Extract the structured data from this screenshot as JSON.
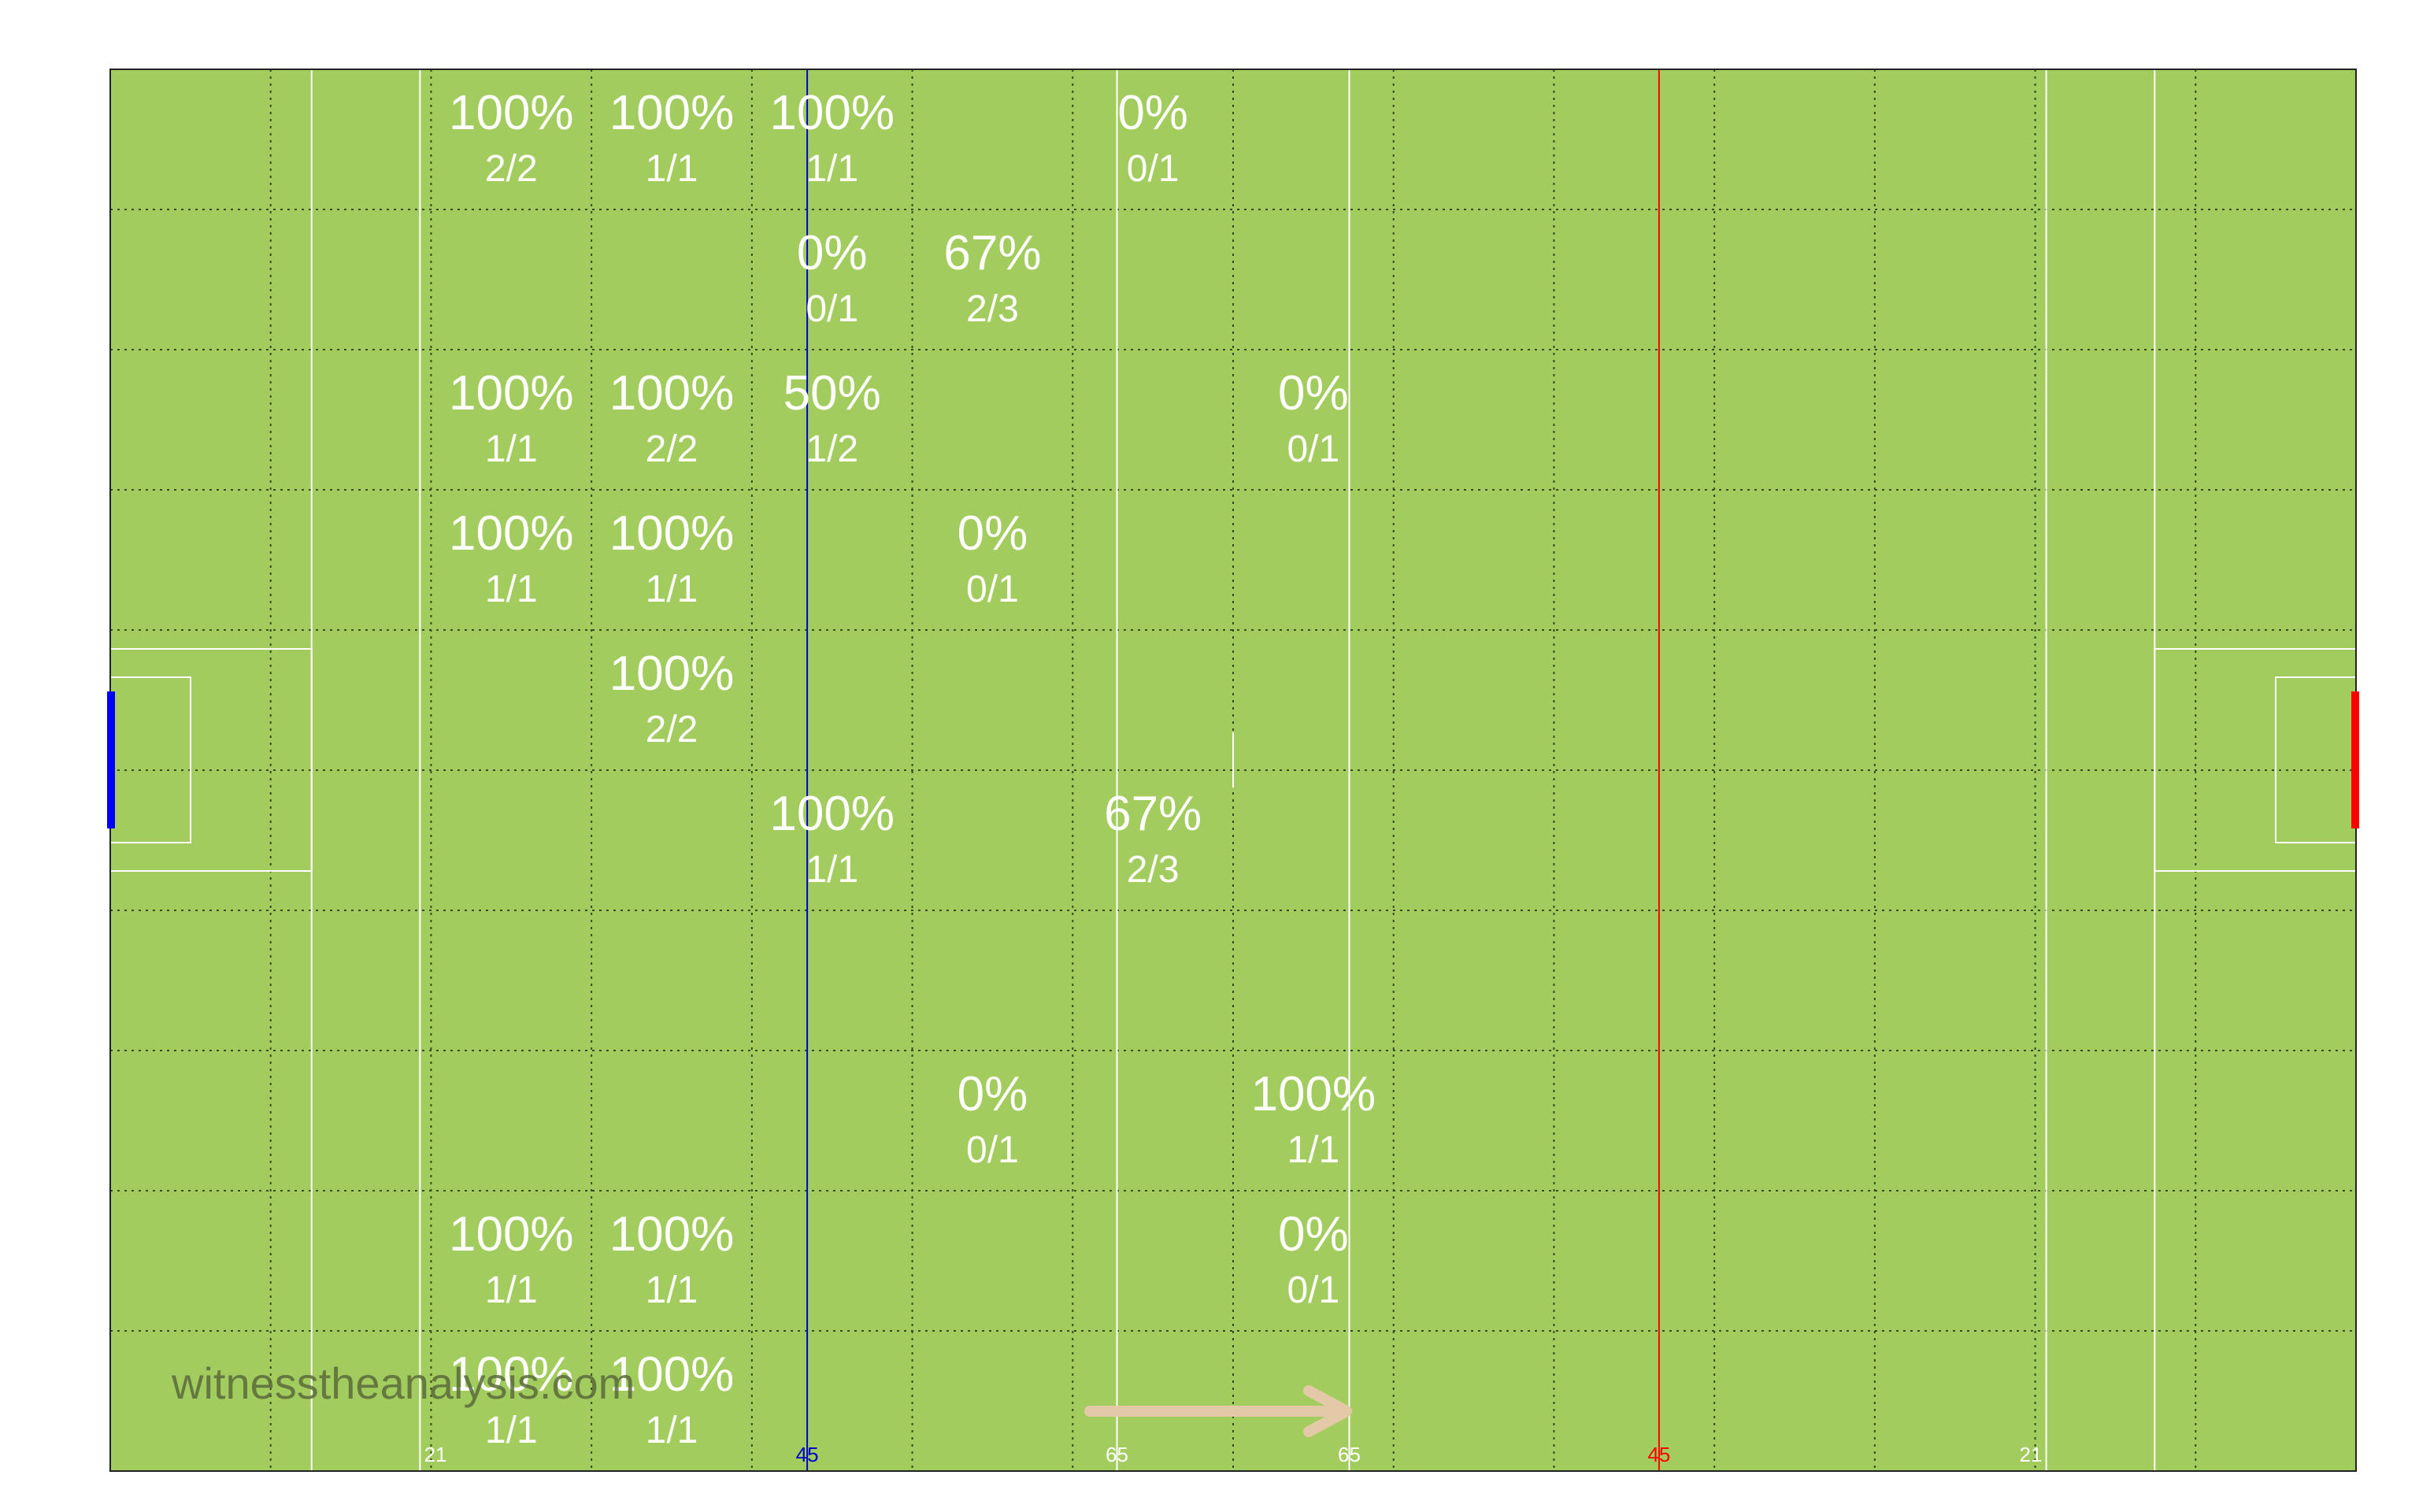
{
  "chart_data": {
    "type": "heatmap",
    "title": "",
    "grid": true,
    "columns": 14,
    "rows": 10,
    "cells": [
      {
        "col": 2,
        "row": 0,
        "pct": "100%",
        "frac": "2/2"
      },
      {
        "col": 3,
        "row": 0,
        "pct": "100%",
        "frac": "1/1"
      },
      {
        "col": 4,
        "row": 0,
        "pct": "100%",
        "frac": "1/1"
      },
      {
        "col": 6,
        "row": 0,
        "pct": "0%",
        "frac": "0/1"
      },
      {
        "col": 4,
        "row": 1,
        "pct": "0%",
        "frac": "0/1"
      },
      {
        "col": 5,
        "row": 1,
        "pct": "67%",
        "frac": "2/3"
      },
      {
        "col": 2,
        "row": 2,
        "pct": "100%",
        "frac": "1/1"
      },
      {
        "col": 3,
        "row": 2,
        "pct": "100%",
        "frac": "2/2"
      },
      {
        "col": 4,
        "row": 2,
        "pct": "50%",
        "frac": "1/2"
      },
      {
        "col": 7,
        "row": 2,
        "pct": "0%",
        "frac": "0/1"
      },
      {
        "col": 2,
        "row": 3,
        "pct": "100%",
        "frac": "1/1"
      },
      {
        "col": 3,
        "row": 3,
        "pct": "100%",
        "frac": "1/1"
      },
      {
        "col": 5,
        "row": 3,
        "pct": "0%",
        "frac": "0/1"
      },
      {
        "col": 3,
        "row": 4,
        "pct": "100%",
        "frac": "2/2"
      },
      {
        "col": 4,
        "row": 5,
        "pct": "100%",
        "frac": "1/1"
      },
      {
        "col": 6,
        "row": 5,
        "pct": "67%",
        "frac": "2/3"
      },
      {
        "col": 5,
        "row": 7,
        "pct": "0%",
        "frac": "0/1"
      },
      {
        "col": 7,
        "row": 7,
        "pct": "100%",
        "frac": "1/1"
      },
      {
        "col": 2,
        "row": 8,
        "pct": "100%",
        "frac": "1/1"
      },
      {
        "col": 3,
        "row": 8,
        "pct": "100%",
        "frac": "1/1"
      },
      {
        "col": 7,
        "row": 8,
        "pct": "0%",
        "frac": "0/1"
      },
      {
        "col": 2,
        "row": 9,
        "pct": "100%",
        "frac": "1/1"
      },
      {
        "col": 3,
        "row": 9,
        "pct": "100%",
        "frac": "1/1"
      }
    ],
    "line_labels": [
      {
        "text": "21",
        "metres": 21,
        "color": "#ffffff"
      },
      {
        "text": "45",
        "metres": 45,
        "color": "#0000cc"
      },
      {
        "text": "65",
        "metres": 65,
        "color": "#ffffff"
      },
      {
        "text": "65",
        "metres": 80,
        "color": "#ffffff"
      },
      {
        "text": "45",
        "metres": 100,
        "color": "#ff0000"
      },
      {
        "text": "21",
        "metres": 124,
        "color": "#ffffff"
      }
    ],
    "pitch_length_m": 145,
    "direction": "left-to-right",
    "watermark": "witnesstheanalysis.com"
  },
  "colors": {
    "pitch": "#a2cd5e",
    "own_45_line": "#0000cc",
    "opp_45_line": "#ff0000",
    "own_goal": "#0000ff",
    "opp_goal": "#ff0000",
    "arrow": "#e4c9a8"
  }
}
